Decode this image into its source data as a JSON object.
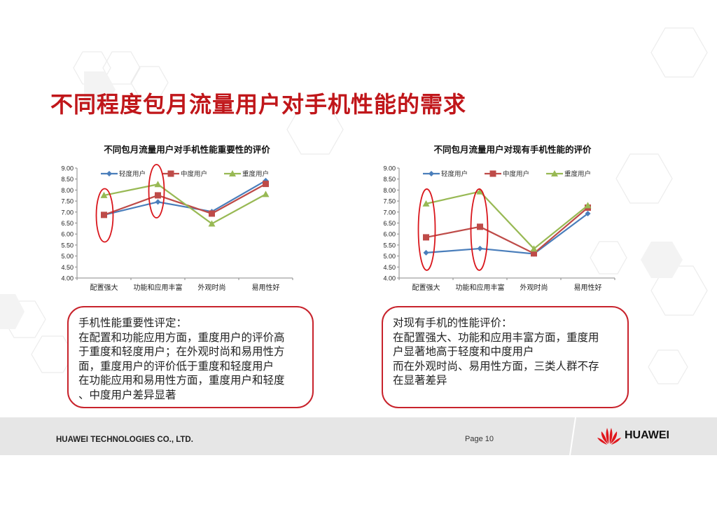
{
  "slide": {
    "title": "不同程度包月流量用户对手机性能的需求",
    "footer": {
      "company": "HUAWEI TECHNOLOGIES CO., LTD.",
      "page": "Page 10",
      "logo_text": "HUAWEI"
    },
    "colors": {
      "title": "#c0161a",
      "light_user": "#4a7ebb",
      "mid_user": "#be4b48",
      "heavy_user": "#98b954",
      "highlight_ellipse": "#d9161c"
    }
  },
  "textboxes": [
    {
      "lines": [
        "手机性能重要性评定：",
        "在配置和功能应用方面，重度用户的评价高",
        "于重度和轻度用户；在外观时尚和易用性方",
        "面，重度用户的评价低于重度和轻度用户",
        "在功能应用和易用性方面，重度用户和轻度",
        "、中度用户差异显著"
      ]
    },
    {
      "lines": [
        "对现有手机的性能评价：",
        "在配置强大、功能和应用丰富方面，重度用",
        "户显著地高于轻度和中度用户",
        "而在外观时尚、易用性方面，三类人群不存",
        "在显著差异"
      ]
    }
  ],
  "chart_data": [
    {
      "type": "line",
      "title": "不同包月流量用户对手机性能重要性的评价",
      "categories": [
        "配置强大",
        "功能和应用丰富",
        "外观时尚",
        "易用性好"
      ],
      "series": [
        {
          "name": "轻度用户",
          "marker": "diamond",
          "values": [
            6.87,
            7.46,
            7.02,
            8.43
          ]
        },
        {
          "name": "中度用户",
          "marker": "square",
          "values": [
            6.87,
            7.76,
            6.93,
            8.28
          ]
        },
        {
          "name": "重度用户",
          "marker": "triangle",
          "values": [
            7.76,
            8.26,
            6.47,
            7.81
          ]
        }
      ],
      "xlabel": "",
      "ylabel": "",
      "ylim": [
        4.0,
        9.0
      ],
      "yticks": [
        "4.00",
        "4.50",
        "5.00",
        "5.50",
        "6.00",
        "6.50",
        "7.00",
        "7.50",
        "8.00",
        "8.50",
        "9.00"
      ],
      "grid": false,
      "legend_position": "top-inside",
      "annotations": [
        "red ellipse around 配置强大",
        "red ellipse around 功能和应用丰富"
      ]
    },
    {
      "type": "line",
      "title": "不同包月流量用户对现有手机性能的评价",
      "categories": [
        "配置强大",
        "功能和应用丰富",
        "外观时尚",
        "易用性好"
      ],
      "series": [
        {
          "name": "轻度用户",
          "marker": "diamond",
          "values": [
            5.15,
            5.34,
            5.1,
            6.93
          ]
        },
        {
          "name": "中度用户",
          "marker": "square",
          "values": [
            5.85,
            6.33,
            5.12,
            7.2
          ]
        },
        {
          "name": "重度用户",
          "marker": "triangle",
          "values": [
            7.38,
            7.93,
            5.33,
            7.3
          ]
        }
      ],
      "xlabel": "",
      "ylabel": "",
      "ylim": [
        4.0,
        9.0
      ],
      "yticks": [
        "4.00",
        "4.50",
        "5.00",
        "5.50",
        "6.00",
        "6.50",
        "7.00",
        "7.50",
        "8.00",
        "8.50",
        "9.00"
      ],
      "grid": false,
      "legend_position": "top-inside",
      "annotations": [
        "red ellipse around 配置强大",
        "red ellipse around 功能和应用丰富"
      ]
    }
  ]
}
